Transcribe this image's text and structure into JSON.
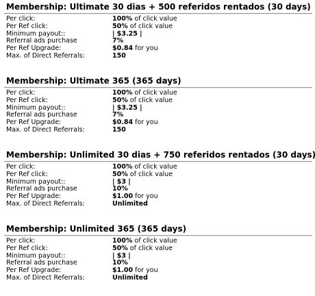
{
  "memberships": [
    {
      "title": "Membership: Ultimate 30 dias + 500 referidos rentados (30 days)",
      "rows": [
        {
          "label": "Per click:",
          "value": "100%",
          "suffix": " of click value"
        },
        {
          "label": "Per Ref click:",
          "value": "50%",
          "suffix": " of click value"
        },
        {
          "label": "Minimum payout::",
          "value": "| $3.25 |"
        },
        {
          "label": "Referral ads purchase",
          "value": "7%"
        },
        {
          "label": "Per Ref Upgrade:",
          "value": "$0.84",
          "suffix": " for you"
        },
        {
          "label": "Max. of Direct Referrals:",
          "value": "150"
        }
      ]
    },
    {
      "title": "Membership: Ultimate 365 (365 days)",
      "rows": [
        {
          "label": "Per click:",
          "value": "100%",
          "suffix": " of click value"
        },
        {
          "label": "Per Ref click:",
          "value": "50%",
          "suffix": " of click value"
        },
        {
          "label": "Minimum payout::",
          "value": "| $3.25 |"
        },
        {
          "label": "Referral ads purchase",
          "value": "7%"
        },
        {
          "label": "Per Ref Upgrade:",
          "value": "$0.84",
          "suffix": " for you"
        },
        {
          "label": "Max. of Direct Referrals:",
          "value": "150"
        }
      ]
    },
    {
      "title": "Membership: Unlimited 30 dias + 750 referidos rentados (30 days)",
      "rows": [
        {
          "label": "Per click:",
          "value": "100%",
          "suffix": " of click value"
        },
        {
          "label": "Per Ref click:",
          "value": "50%",
          "suffix": " of click value"
        },
        {
          "label": "Minimum payout::",
          "value": "| $3 |"
        },
        {
          "label": "Referral ads purchase",
          "value": "10%"
        },
        {
          "label": "Per Ref Upgrade:",
          "value": "$1.00",
          "suffix": " for you"
        },
        {
          "label": "Max. of Direct Referrals:",
          "value": "Unlimited"
        }
      ]
    },
    {
      "title": "Membership: Unlimited 365 (365 days)",
      "rows": [
        {
          "label": "Per click:",
          "value": "100%",
          "suffix": " of click value"
        },
        {
          "label": "Per Ref click:",
          "value": "50%",
          "suffix": " of click value"
        },
        {
          "label": "Minimum payout::",
          "value": "| $3 |"
        },
        {
          "label": "Referral ads purchase",
          "value": "10%"
        },
        {
          "label": "Per Ref Upgrade:",
          "value": "$1.00",
          "suffix": " for you"
        },
        {
          "label": "Max. of Direct Referrals:",
          "value": "Unlimited"
        }
      ]
    }
  ]
}
